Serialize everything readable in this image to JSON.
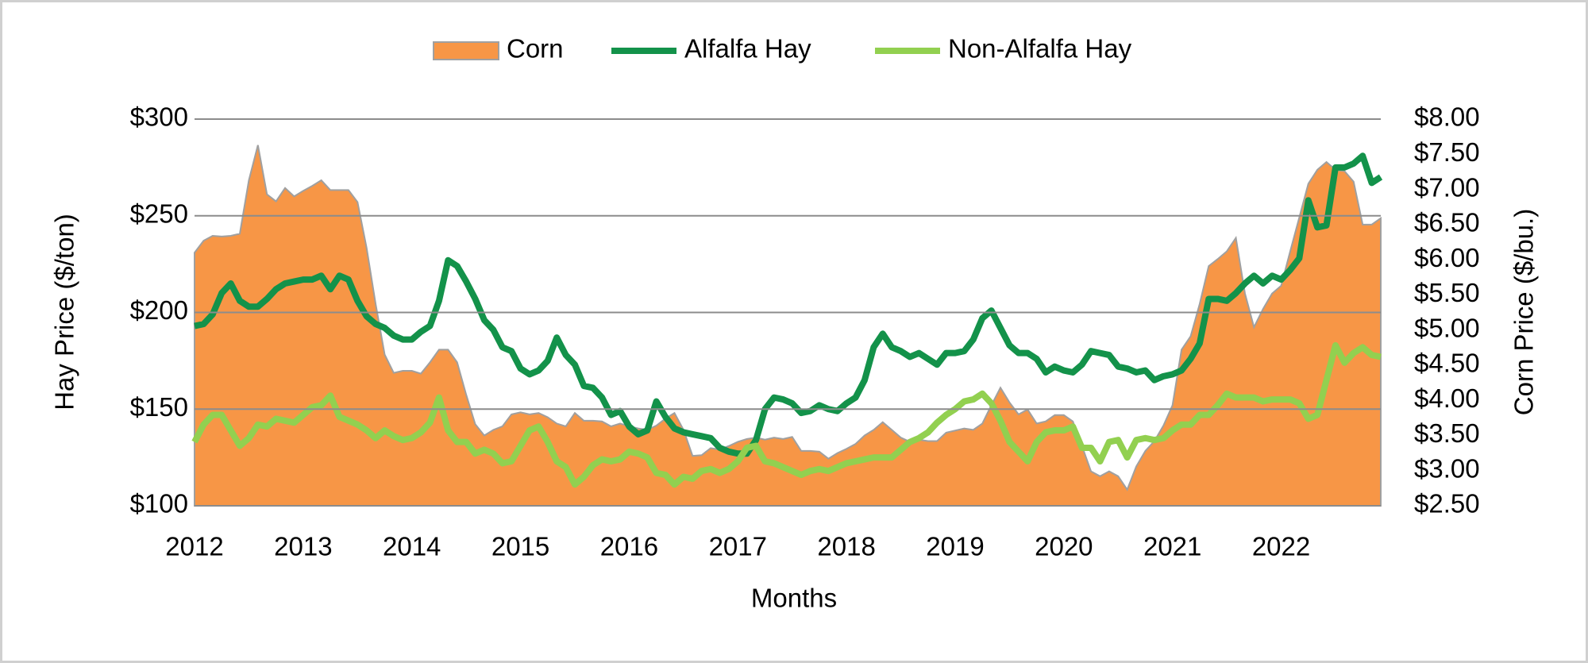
{
  "chart_data": {
    "type": "area_line",
    "x_label": "Months",
    "y_label": "Hay Price ($/ton)",
    "y2_label": "Corn Price ($/bu.)",
    "legend": "top",
    "grid": true,
    "categories": [
      "2012",
      null,
      null,
      null,
      null,
      null,
      null,
      null,
      null,
      null,
      null,
      null,
      "2013",
      null,
      null,
      null,
      null,
      null,
      null,
      null,
      null,
      null,
      null,
      null,
      "2014",
      null,
      null,
      null,
      null,
      null,
      null,
      null,
      null,
      null,
      null,
      null,
      "2015",
      null,
      null,
      null,
      null,
      null,
      null,
      null,
      null,
      null,
      null,
      null,
      "2016",
      null,
      null,
      null,
      null,
      null,
      null,
      null,
      null,
      null,
      null,
      null,
      "2017",
      null,
      null,
      null,
      null,
      null,
      null,
      null,
      null,
      null,
      null,
      null,
      "2018",
      null,
      null,
      null,
      null,
      null,
      null,
      null,
      null,
      null,
      null,
      null,
      "2019",
      null,
      null,
      null,
      null,
      null,
      null,
      null,
      null,
      null,
      null,
      null,
      "2020",
      null,
      null,
      null,
      null,
      null,
      null,
      null,
      null,
      null,
      null,
      null,
      "2021",
      null,
      null,
      null,
      null,
      null,
      null,
      null,
      null,
      null,
      null,
      null,
      "2022",
      null,
      null,
      null,
      null,
      null,
      null,
      null,
      null,
      null,
      null,
      null
    ],
    "ylim": [
      100,
      300
    ],
    "yticks": [
      {
        "value": 100,
        "label": "$100"
      },
      {
        "value": 150,
        "label": "$150"
      },
      {
        "value": 200,
        "label": "$200"
      },
      {
        "value": 250,
        "label": "$250"
      },
      {
        "value": 300,
        "label": "$300"
      }
    ],
    "y2lim": [
      2.5,
      8
    ],
    "y2ticks": [
      {
        "value": 2.5,
        "label": "$2.50"
      },
      {
        "value": 3,
        "label": "$3.00"
      },
      {
        "value": 3.5,
        "label": "$3.50"
      },
      {
        "value": 4,
        "label": "$4.00"
      },
      {
        "value": 4.5,
        "label": "$4.50"
      },
      {
        "value": 5,
        "label": "$5.00"
      },
      {
        "value": 5.5,
        "label": "$5.50"
      },
      {
        "value": 6,
        "label": "$6.00"
      },
      {
        "value": 6.5,
        "label": "$6.50"
      },
      {
        "value": 7,
        "label": "$7.00"
      },
      {
        "value": 7.5,
        "label": "$7.50"
      },
      {
        "value": 8,
        "label": "$8.00"
      }
    ],
    "series": [
      {
        "name": "Corn",
        "kind": "area",
        "axis": "y2",
        "color": "#f79646",
        "values": [
          6.1,
          6.27,
          6.34,
          6.33,
          6.34,
          6.37,
          7.13,
          7.63,
          6.93,
          6.83,
          7.02,
          6.9,
          6.98,
          7.05,
          7.13,
          6.99,
          6.99,
          6.99,
          6.82,
          6.17,
          5.37,
          4.65,
          4.39,
          4.42,
          4.42,
          4.38,
          4.54,
          4.72,
          4.72,
          4.54,
          4.08,
          3.66,
          3.5,
          3.58,
          3.63,
          3.8,
          3.83,
          3.8,
          3.82,
          3.76,
          3.67,
          3.63,
          3.82,
          3.71,
          3.71,
          3.7,
          3.63,
          3.67,
          3.63,
          3.6,
          3.58,
          3.64,
          3.74,
          3.82,
          3.58,
          3.21,
          3.22,
          3.32,
          3.3,
          3.35,
          3.41,
          3.45,
          3.47,
          3.44,
          3.47,
          3.45,
          3.48,
          3.28,
          3.28,
          3.27,
          3.17,
          3.25,
          3.31,
          3.38,
          3.5,
          3.58,
          3.69,
          3.58,
          3.47,
          3.41,
          3.44,
          3.42,
          3.42,
          3.54,
          3.57,
          3.6,
          3.58,
          3.67,
          3.93,
          4.18,
          3.97,
          3.8,
          3.87,
          3.67,
          3.7,
          3.79,
          3.79,
          3.7,
          3.35,
          2.99,
          2.92,
          2.99,
          2.92,
          2.73,
          3.06,
          3.28,
          3.42,
          3.64,
          3.93,
          4.72,
          4.91,
          5.37,
          5.91,
          6.01,
          6.12,
          6.31,
          5.52,
          5.04,
          5.3,
          5.52,
          5.63,
          6.12,
          6.6,
          7.08,
          7.28,
          7.39,
          7.28,
          7.26,
          7.11,
          6.5,
          6.5,
          6.59
        ]
      },
      {
        "name": "Alfalfa Hay",
        "kind": "line",
        "color": "#13924a",
        "values": [
          193,
          194,
          199,
          210,
          215,
          206,
          203,
          203,
          207,
          212,
          215,
          216,
          217,
          217,
          219,
          212,
          219,
          217,
          206,
          198,
          194,
          192,
          188,
          186,
          186,
          190,
          193,
          206,
          227,
          224,
          216,
          207,
          196,
          191,
          182,
          180,
          171,
          168,
          170,
          175,
          187,
          178,
          173,
          162,
          161,
          156,
          147,
          149,
          141,
          137,
          139,
          154,
          146,
          140,
          138,
          137,
          136,
          135,
          130,
          128,
          127,
          127,
          134,
          150,
          156,
          155,
          153,
          148,
          149,
          152,
          150,
          149,
          153,
          156,
          165,
          182,
          189,
          182,
          180,
          177,
          179,
          176,
          173,
          179,
          179,
          180,
          186,
          197,
          201,
          192,
          183,
          179,
          179,
          176,
          169,
          172,
          170,
          169,
          173,
          180,
          179,
          178,
          172,
          171,
          169,
          170,
          165,
          167,
          168,
          170,
          176,
          184,
          207,
          207,
          206,
          210,
          215,
          219,
          215,
          219,
          217,
          222,
          228,
          258,
          244,
          245,
          275,
          275,
          277,
          281,
          267,
          270
        ]
      },
      {
        "name": "Non-Alfalfa Hay",
        "kind": "line",
        "color": "#92d050",
        "values": [
          133,
          142,
          147,
          147,
          139,
          131,
          135,
          142,
          141,
          145,
          144,
          143,
          147,
          151,
          152,
          157,
          146,
          144,
          142,
          139,
          135,
          139,
          136,
          134,
          135,
          138,
          143,
          156,
          139,
          133,
          133,
          127,
          129,
          127,
          122,
          123,
          131,
          139,
          141,
          133,
          123,
          120,
          111,
          115,
          121,
          124,
          123,
          124,
          128,
          127,
          125,
          117,
          116,
          111,
          115,
          114,
          118,
          119,
          117,
          119,
          123,
          130,
          131,
          123,
          122,
          120,
          118,
          116,
          118,
          119,
          118,
          120,
          122,
          123,
          124,
          125,
          125,
          125,
          129,
          133,
          135,
          138,
          143,
          147,
          150,
          154,
          155,
          158,
          153,
          144,
          133,
          128,
          123,
          133,
          138,
          139,
          139,
          141,
          130,
          130,
          123,
          133,
          134,
          125,
          134,
          135,
          134,
          135,
          139,
          142,
          142,
          147,
          147,
          152,
          158,
          156,
          156,
          156,
          154,
          155,
          155,
          155,
          153,
          145,
          147,
          165,
          183,
          174,
          179,
          182,
          178,
          177
        ]
      }
    ]
  }
}
